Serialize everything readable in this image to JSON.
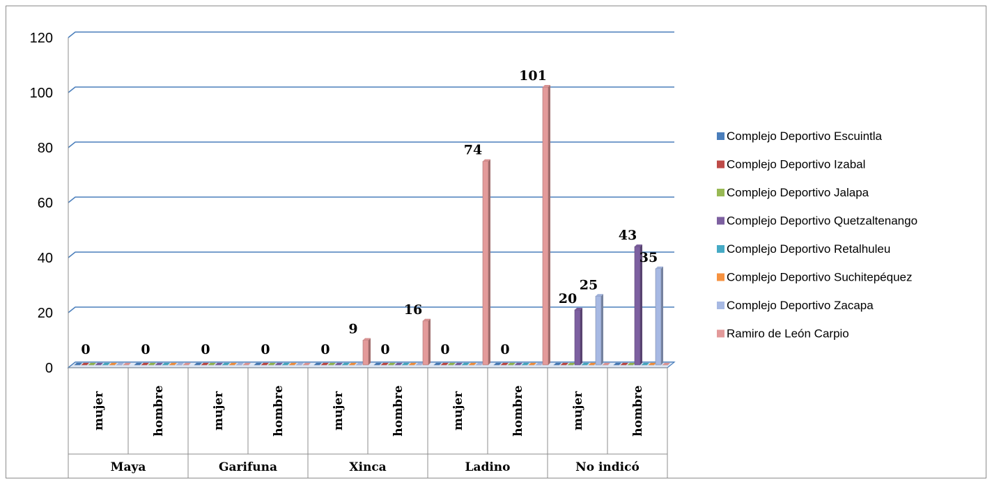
{
  "chart_data": {
    "type": "bar",
    "title": "",
    "xlabel": "",
    "ylabel": "",
    "ylim": [
      0,
      120
    ],
    "yticks": [
      "0",
      "20",
      "40",
      "60",
      "80",
      "100",
      "120"
    ],
    "grid": true,
    "legend_position": "right",
    "groups": [
      {
        "label": "Maya",
        "categories": [
          "mujer",
          "hombre"
        ]
      },
      {
        "label": "Garifuna",
        "categories": [
          "mujer",
          "hombre"
        ]
      },
      {
        "label": "Xinca",
        "categories": [
          "mujer",
          "hombre"
        ]
      },
      {
        "label": "Ladino",
        "categories": [
          "mujer",
          "hombre"
        ]
      },
      {
        "label": "No indicó",
        "categories": [
          "mujer",
          "hombre"
        ]
      }
    ],
    "categories": [
      "mujer",
      "hombre",
      "mujer",
      "hombre",
      "mujer",
      "hombre",
      "mujer",
      "hombre",
      "mujer",
      "hombre"
    ],
    "series": [
      {
        "name": "Complejo Deportivo Escuintla",
        "color": "#4a7ebb",
        "values": [
          0,
          0,
          0,
          0,
          0,
          0,
          0,
          0,
          0,
          0
        ]
      },
      {
        "name": "Complejo Deportivo Izabal",
        "color": "#be4b48",
        "values": [
          0,
          0,
          0,
          0,
          0,
          0,
          0,
          0,
          0,
          0
        ]
      },
      {
        "name": "Complejo Deportivo Jalapa",
        "color": "#98b954",
        "values": [
          0,
          0,
          0,
          0,
          0,
          0,
          0,
          0,
          0,
          0
        ]
      },
      {
        "name": "Complejo Deportivo Quetzaltenango",
        "color": "#7d60a0",
        "values": [
          0,
          0,
          0,
          0,
          0,
          0,
          0,
          0,
          20,
          43
        ]
      },
      {
        "name": "Complejo Deportivo Retalhuleu",
        "color": "#46aac5",
        "values": [
          0,
          0,
          0,
          0,
          0,
          0,
          0,
          0,
          0,
          0
        ]
      },
      {
        "name": "Complejo Deportivo Suchitepéquez",
        "color": "#f69240",
        "values": [
          0,
          0,
          0,
          0,
          0,
          0,
          0,
          0,
          0,
          0
        ]
      },
      {
        "name": "Complejo Deportivo Zacapa",
        "color": "#a7b9e3",
        "values": [
          0,
          0,
          0,
          0,
          0,
          0,
          0,
          0,
          25,
          35
        ]
      },
      {
        "name": "Ramiro de León Carpio",
        "color": "#e39a9a",
        "values": [
          0,
          0,
          0,
          0,
          9,
          16,
          74,
          101,
          0,
          0
        ]
      }
    ],
    "data_labels": [
      {
        "category_index": 0,
        "text": "0"
      },
      {
        "category_index": 1,
        "text": "0"
      },
      {
        "category_index": 2,
        "text": "0"
      },
      {
        "category_index": 3,
        "text": "0"
      },
      {
        "category_index": 4,
        "text": "0"
      },
      {
        "category_index": 4,
        "text": "9"
      },
      {
        "category_index": 5,
        "text": "0"
      },
      {
        "category_index": 5,
        "text": "16"
      },
      {
        "category_index": 6,
        "text": "0"
      },
      {
        "category_index": 6,
        "text": "74"
      },
      {
        "category_index": 7,
        "text": "0"
      },
      {
        "category_index": 7,
        "text": "101"
      },
      {
        "category_index": 8,
        "text": "20"
      },
      {
        "category_index": 8,
        "text": "25"
      },
      {
        "category_index": 9,
        "text": "43"
      },
      {
        "category_index": 9,
        "text": "35"
      }
    ]
  }
}
